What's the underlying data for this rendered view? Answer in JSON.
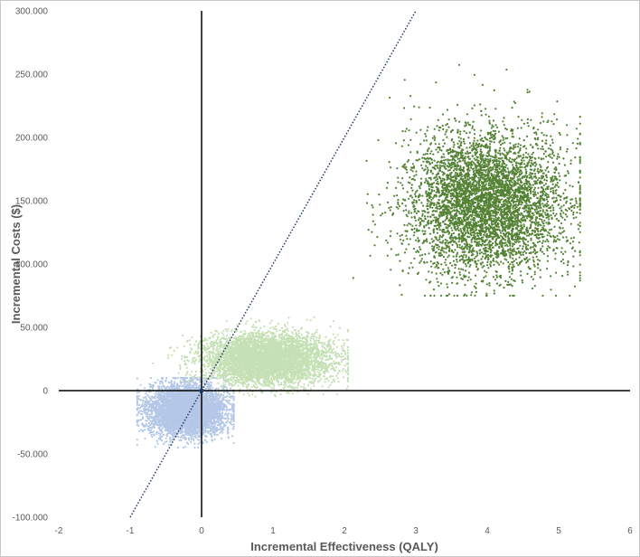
{
  "chart_data": {
    "type": "scatter",
    "title": "",
    "xlabel": "Incremental Effectiveness (QALY)",
    "ylabel": "Incremental Costs ($)",
    "xlim": [
      -2,
      6
    ],
    "ylim": [
      -100000,
      300000
    ],
    "x_ticks": [
      "-2",
      "-1",
      "0",
      "1",
      "2",
      "3",
      "4",
      "5",
      "6"
    ],
    "y_ticks": [
      "300.000",
      "250.000",
      "200.000",
      "150.000",
      "100.000",
      "50.000",
      "0",
      "-50.000",
      "-100.000"
    ],
    "grid": false,
    "legend": "none",
    "series": [
      {
        "color": "#548235",
        "point_count": 5000,
        "mean": [
          3.98,
          148000
        ],
        "sd": [
          0.55,
          28000
        ],
        "range_x": [
          0.35,
          5.3
        ],
        "range_y": [
          75000,
          290000
        ]
      },
      {
        "color": "#c5e0b4",
        "point_count": 5000,
        "mean": [
          0.9,
          25000
        ],
        "sd": [
          0.45,
          10000
        ],
        "range_x": [
          -0.8,
          2.05
        ],
        "range_y": [
          -5000,
          58000
        ]
      },
      {
        "color": "#b4c7e7",
        "point_count": 5000,
        "mean": [
          -0.2,
          -15000
        ],
        "sd": [
          0.27,
          10000
        ],
        "range_x": [
          -0.9,
          0.45
        ],
        "range_y": [
          -45000,
          10000
        ]
      }
    ],
    "wtp_line": {
      "color": "#203864",
      "style": "dotted",
      "from": [
        -1,
        -100000
      ],
      "to": [
        3,
        300000
      ]
    },
    "origin_point": {
      "x": 0,
      "y": 0,
      "color": "#203864"
    }
  }
}
